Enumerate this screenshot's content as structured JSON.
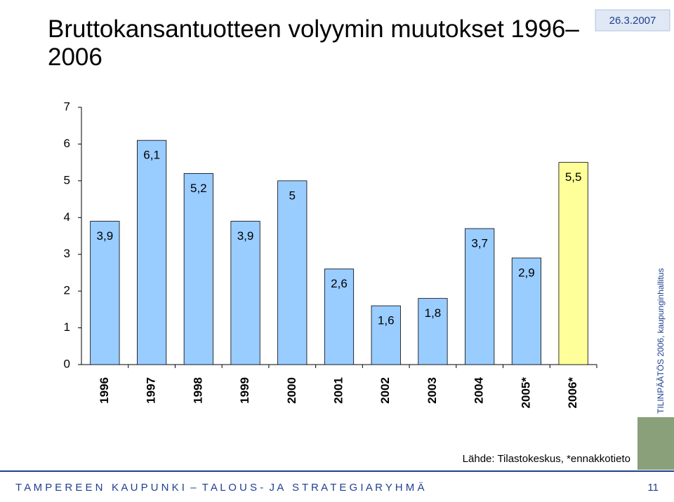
{
  "chart_data": {
    "type": "bar",
    "title": "Bruttokansantuotteen volyymin muutokset 1996–2006",
    "categories": [
      "1996",
      "1997",
      "1998",
      "1999",
      "2000",
      "2001",
      "2002",
      "2003",
      "2004",
      "2005*",
      "2006*"
    ],
    "values": [
      3.9,
      6.1,
      5.2,
      3.9,
      5,
      2.6,
      1.6,
      1.8,
      3.7,
      2.9,
      5.5
    ],
    "value_labels": [
      "3,9",
      "6,1",
      "5,2",
      "3,9",
      "5",
      "2,6",
      "1,6",
      "1,8",
      "3,7",
      "2,9",
      "5,5"
    ],
    "colors": [
      "#99ccff",
      "#99ccff",
      "#99ccff",
      "#99ccff",
      "#99ccff",
      "#99ccff",
      "#99ccff",
      "#99ccff",
      "#99ccff",
      "#99ccff",
      "#ffff99"
    ],
    "ylim": [
      0,
      7
    ],
    "yticks": [
      0,
      1,
      2,
      3,
      4,
      5,
      6,
      7
    ],
    "grid": false
  },
  "slide": {
    "date": "26.3.2007",
    "side_text": "TILINPÄÄTÖS 2006, kaupunginhallitus",
    "source": "Lähde: Tilastokeskus, *ennakkotieto",
    "footer": "T A M P E R E E N   K A U P U N K I  –  T A L O U S -  J A   S T R A T E G I A R Y H M Ä",
    "page": "11"
  }
}
